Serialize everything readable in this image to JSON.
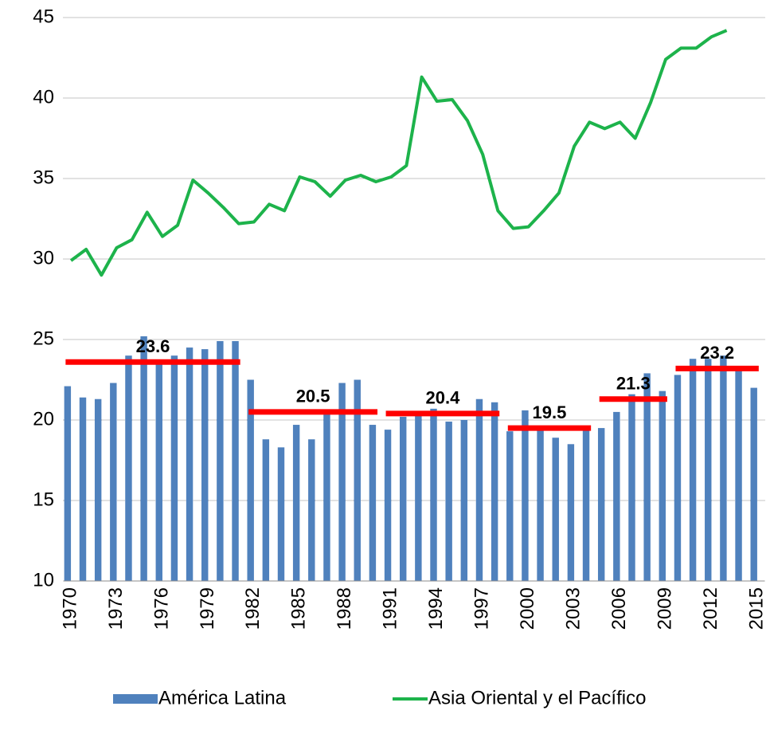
{
  "chart_data": {
    "type": "bar",
    "categories": [
      "1970",
      null,
      null,
      "1973",
      null,
      null,
      "1976",
      null,
      null,
      "1979",
      null,
      null,
      "1982",
      null,
      null,
      "1985",
      null,
      null,
      "1988",
      null,
      null,
      "1991",
      null,
      null,
      "1994",
      null,
      null,
      "1997",
      null,
      null,
      "2000",
      null,
      null,
      "2003",
      null,
      null,
      "2006",
      null,
      null,
      "2009",
      null,
      null,
      "2012",
      null,
      null,
      "2015"
    ],
    "series": [
      {
        "name": "América Latina",
        "type": "bar",
        "color": "#4f81bd",
        "values": [
          22.1,
          21.4,
          21.3,
          22.3,
          24.0,
          25.2,
          23.6,
          24.0,
          24.5,
          24.4,
          24.9,
          24.9,
          22.5,
          18.8,
          18.3,
          19.7,
          18.8,
          20.6,
          22.3,
          22.5,
          19.7,
          19.4,
          20.2,
          20.4,
          20.7,
          19.9,
          20.0,
          21.3,
          21.1,
          19.3,
          20.6,
          19.5,
          18.9,
          18.5,
          19.5,
          19.5,
          20.5,
          21.6,
          22.9,
          21.8,
          22.8,
          23.8,
          23.8,
          24.0,
          23.3,
          22.0
        ]
      },
      {
        "name": "Asia Oriental y el Pacífico",
        "type": "line",
        "color": "#1db34b",
        "values": [
          29.9,
          30.6,
          29.0,
          30.7,
          31.2,
          32.9,
          31.4,
          32.1,
          34.9,
          34.1,
          33.2,
          32.2,
          32.3,
          33.4,
          33.0,
          35.1,
          34.8,
          33.9,
          34.9,
          35.2,
          34.8,
          35.1,
          35.8,
          41.3,
          39.8,
          39.9,
          38.6,
          36.5,
          33.0,
          31.9,
          32.0,
          33.0,
          34.1,
          37.0,
          38.5,
          38.1,
          38.5,
          37.5,
          39.7,
          42.4,
          43.1,
          43.1,
          43.8,
          44.2,
          null,
          null
        ]
      }
    ],
    "periods": {
      "color": "#ff0000",
      "items": [
        {
          "from": 0,
          "to": 11,
          "value": 23.6
        },
        {
          "from": 12,
          "to": 20,
          "value": 20.5
        },
        {
          "from": 21,
          "to": 28,
          "value": 20.4
        },
        {
          "from": 29,
          "to": 34,
          "value": 19.5
        },
        {
          "from": 35,
          "to": 39,
          "value": 21.3
        },
        {
          "from": 40,
          "to": 45,
          "value": 23.2
        }
      ]
    },
    "ylim": [
      10,
      45
    ],
    "yticks": [
      10,
      15,
      20,
      25,
      30,
      35,
      40,
      45
    ],
    "grid": true,
    "legend": "bottom"
  }
}
